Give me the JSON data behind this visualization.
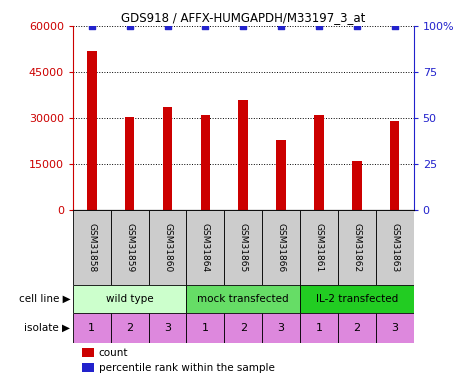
{
  "title": "GDS918 / AFFX-HUMGAPDH/M33197_3_at",
  "samples": [
    "GSM31858",
    "GSM31859",
    "GSM31860",
    "GSM31864",
    "GSM31865",
    "GSM31866",
    "GSM31861",
    "GSM31862",
    "GSM31863"
  ],
  "counts": [
    52000,
    30500,
    33500,
    31000,
    36000,
    23000,
    31000,
    16000,
    29000
  ],
  "percentile_ranks": [
    100,
    100,
    100,
    100,
    100,
    100,
    100,
    100,
    100
  ],
  "bar_color": "#cc0000",
  "dot_color": "#2222cc",
  "left_ylim": [
    0,
    60000
  ],
  "left_yticks": [
    0,
    15000,
    30000,
    45000,
    60000
  ],
  "left_yticklabels": [
    "0",
    "15000",
    "30000",
    "45000",
    "60000"
  ],
  "right_ylim": [
    0,
    100
  ],
  "right_yticks": [
    0,
    25,
    50,
    75,
    100
  ],
  "right_yticklabels": [
    "0",
    "25",
    "50",
    "75",
    "100%"
  ],
  "cell_line_groups": [
    {
      "label": "wild type",
      "start": 0,
      "end": 3,
      "color": "#ccffcc"
    },
    {
      "label": "mock transfected",
      "start": 3,
      "end": 6,
      "color": "#66dd66"
    },
    {
      "label": "IL-2 transfected",
      "start": 6,
      "end": 9,
      "color": "#22cc22"
    }
  ],
  "isolates": [
    "1",
    "2",
    "3",
    "1",
    "2",
    "3",
    "1",
    "2",
    "3"
  ],
  "isolate_color": "#dd88dd",
  "sample_bg_color": "#cccccc",
  "left_axis_color": "#cc0000",
  "right_axis_color": "#2222cc",
  "cell_line_label": "cell line",
  "isolate_label": "isolate",
  "legend_count_color": "#cc0000",
  "legend_dot_color": "#2222cc",
  "legend_count_text": "count",
  "legend_percentile_text": "percentile rank within the sample",
  "bar_width": 0.25
}
